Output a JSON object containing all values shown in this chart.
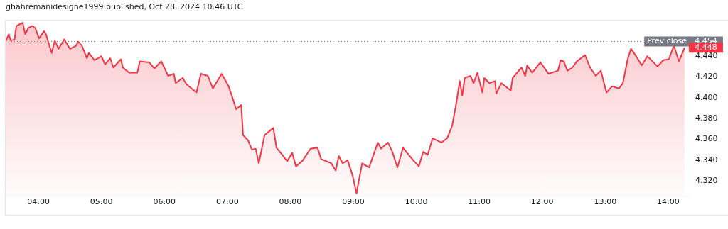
{
  "chart_data": {
    "type": "area",
    "title": "ghahremanidesigne1999 published, Oct 28, 2024 10:46 UTC",
    "x": [
      3.48,
      3.53,
      3.56,
      3.62,
      3.65,
      3.75,
      3.79,
      3.84,
      3.9,
      3.95,
      4.01,
      4.09,
      4.12,
      4.21,
      4.26,
      4.32,
      4.41,
      4.5,
      4.6,
      4.63,
      4.69,
      4.77,
      4.8,
      4.89,
      5.0,
      5.06,
      5.14,
      5.19,
      5.31,
      5.34,
      5.44,
      5.57,
      5.61,
      5.76,
      5.84,
      5.95,
      6.06,
      6.15,
      6.18,
      6.29,
      6.35,
      6.51,
      6.58,
      6.69,
      6.77,
      6.91,
      7.02,
      7.07,
      7.14,
      7.22,
      7.25,
      7.33,
      7.39,
      7.45,
      7.5,
      7.59,
      7.73,
      7.78,
      7.9,
      7.95,
      8.03,
      8.09,
      8.2,
      8.32,
      8.43,
      8.49,
      8.65,
      8.72,
      8.77,
      8.83,
      8.91,
      8.99,
      9.05,
      9.14,
      9.25,
      9.39,
      9.44,
      9.55,
      9.62,
      9.7,
      9.79,
      9.84,
      9.95,
      10.04,
      10.11,
      10.18,
      10.26,
      10.4,
      10.49,
      10.57,
      10.63,
      10.69,
      10.73,
      10.77,
      10.86,
      10.91,
      10.97,
      11.05,
      11.08,
      11.16,
      11.25,
      11.27,
      11.35,
      11.5,
      11.53,
      11.67,
      11.73,
      11.76,
      11.84,
      11.97,
      12.03,
      12.1,
      12.25,
      12.29,
      12.34,
      12.4,
      12.48,
      12.55,
      12.68,
      12.76,
      12.85,
      12.93,
      13.02,
      13.11,
      13.22,
      13.28,
      13.36,
      13.41,
      13.49,
      13.58,
      13.67,
      13.83,
      13.92,
      14.01,
      14.09,
      14.17,
      14.26
    ],
    "series": [
      {
        "color": "#f23645",
        "values": [
          4.454,
          4.461,
          4.455,
          4.456,
          4.469,
          4.472,
          4.461,
          4.467,
          4.469,
          4.467,
          4.457,
          4.464,
          4.461,
          4.443,
          4.455,
          4.447,
          4.456,
          4.447,
          4.45,
          4.454,
          4.45,
          4.438,
          4.443,
          4.436,
          4.44,
          4.432,
          4.438,
          4.429,
          4.437,
          4.429,
          4.424,
          4.424,
          4.435,
          4.434,
          4.428,
          4.435,
          4.421,
          4.423,
          4.414,
          4.419,
          4.413,
          4.405,
          4.423,
          4.421,
          4.409,
          4.423,
          4.411,
          4.402,
          4.389,
          4.393,
          4.364,
          4.359,
          4.35,
          4.351,
          4.337,
          4.364,
          4.371,
          4.352,
          4.343,
          4.339,
          4.347,
          4.334,
          4.34,
          4.351,
          4.352,
          4.341,
          4.337,
          4.33,
          4.344,
          4.337,
          4.34,
          4.325,
          4.308,
          4.337,
          4.333,
          4.357,
          4.351,
          4.357,
          4.348,
          4.333,
          4.352,
          4.348,
          4.34,
          4.334,
          4.348,
          4.345,
          4.361,
          4.357,
          4.361,
          4.373,
          4.393,
          4.416,
          4.402,
          4.419,
          4.421,
          4.414,
          4.424,
          4.405,
          4.419,
          4.414,
          4.416,
          4.404,
          4.414,
          4.407,
          4.419,
          4.429,
          4.421,
          4.431,
          4.424,
          4.434,
          4.429,
          4.423,
          4.426,
          4.436,
          4.435,
          4.426,
          4.429,
          4.435,
          4.441,
          4.429,
          4.421,
          4.426,
          4.405,
          4.411,
          4.409,
          4.414,
          4.438,
          4.447,
          4.44,
          4.431,
          4.44,
          4.43,
          4.436,
          4.437,
          4.45,
          4.435,
          4.448
        ]
      }
    ],
    "xlim": [
      3.48,
      14.34
    ],
    "ylim": [
      4.306,
      4.474
    ],
    "xticks": [
      {
        "value": 4,
        "label": "04:00"
      },
      {
        "value": 5,
        "label": "05:00"
      },
      {
        "value": 6,
        "label": "06:00"
      },
      {
        "value": 7,
        "label": "07:00"
      },
      {
        "value": 8,
        "label": "08:00"
      },
      {
        "value": 9,
        "label": "09:00"
      },
      {
        "value": 10,
        "label": "10:00"
      },
      {
        "value": 11,
        "label": "11:00"
      },
      {
        "value": 12,
        "label": "12:00"
      },
      {
        "value": 13,
        "label": "13:00"
      },
      {
        "value": 14,
        "label": "14:00"
      }
    ],
    "yticks": [
      {
        "value": 4.32,
        "label": "4.320"
      },
      {
        "value": 4.34,
        "label": "4.340"
      },
      {
        "value": 4.36,
        "label": "4.360"
      },
      {
        "value": 4.38,
        "label": "4.380"
      },
      {
        "value": 4.4,
        "label": "4.400"
      },
      {
        "value": 4.42,
        "label": "4.420"
      },
      {
        "value": 4.44,
        "label": "4.440"
      }
    ],
    "ref_lines": [
      {
        "axis": "y",
        "value": 4.454,
        "label": "Prev close",
        "color": "#787b86",
        "line_style": "dotted"
      }
    ],
    "annotations": [
      {
        "text": "4.454",
        "x": 14.26,
        "y": 4.454
      },
      {
        "text": "4.448",
        "x": 14.26,
        "y": 4.448
      }
    ],
    "grid": false,
    "legend": false,
    "marker": "none",
    "line_style": "solid"
  }
}
